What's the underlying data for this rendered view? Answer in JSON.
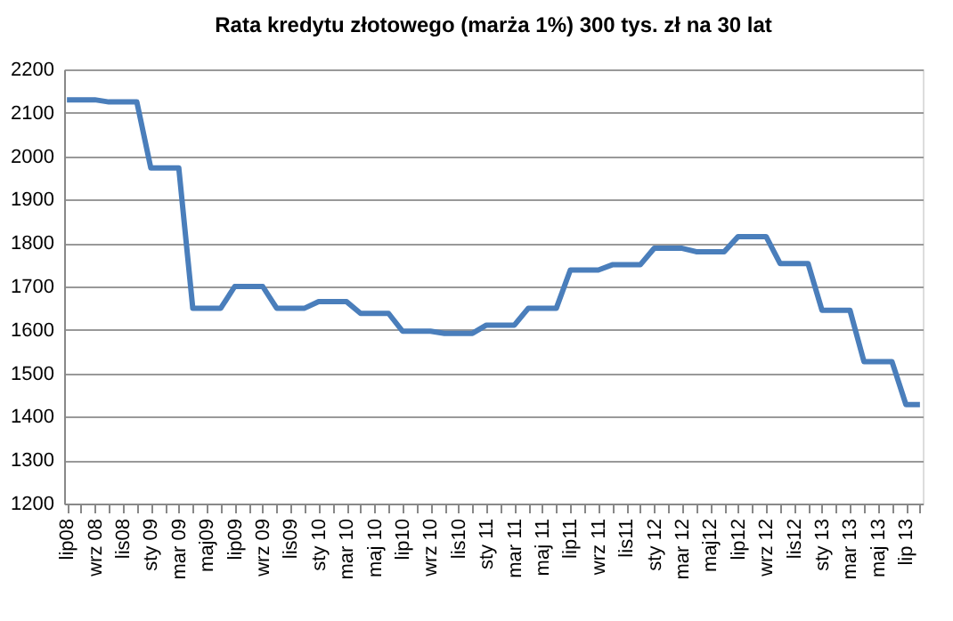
{
  "chart_data": {
    "type": "line",
    "title": "Rata kredytu złotowego (marża 1%) 300 tys. zł na 30 lat",
    "categories": [
      "lip08",
      null,
      "wrz 08",
      null,
      "lis08",
      null,
      "sty 09",
      null,
      "mar 09",
      null,
      "maj09",
      null,
      "lip09",
      null,
      "wrz 09",
      null,
      "lis09",
      null,
      "sty 10",
      null,
      "mar 10",
      null,
      "maj 10",
      null,
      "lip10",
      null,
      "wrz 10",
      null,
      "lis10",
      null,
      "sty 11",
      null,
      "mar 11",
      null,
      "maj 11",
      null,
      "lip11",
      null,
      "wrz 11",
      null,
      "lis11",
      null,
      "sty 12",
      null,
      "mar 12",
      null,
      "maj12",
      null,
      "lip12",
      null,
      "wrz 12",
      null,
      "lis12",
      null,
      "sty 13",
      null,
      "mar 13",
      null,
      "maj 13",
      null,
      "lip 13",
      null
    ],
    "series": [
      {
        "color": "#4a7ebb",
        "values": [
          2130,
          2130,
          2130,
          2125,
          2125,
          2125,
          1973,
          1973,
          1973,
          1650,
          1650,
          1650,
          1700,
          1700,
          1700,
          1650,
          1650,
          1650,
          1665,
          1665,
          1665,
          1638,
          1638,
          1638,
          1597,
          1597,
          1597,
          1592,
          1592,
          1592,
          1611,
          1611,
          1611,
          1650,
          1650,
          1650,
          1738,
          1738,
          1738,
          1750,
          1750,
          1750,
          1788,
          1788,
          1788,
          1780,
          1780,
          1780,
          1815,
          1815,
          1815,
          1753,
          1753,
          1753,
          1645,
          1645,
          1645,
          1527,
          1527,
          1527,
          1428,
          1428
        ]
      }
    ],
    "ylim": [
      1200,
      2200
    ],
    "yticks": [
      1200,
      1300,
      1400,
      1500,
      1600,
      1700,
      1800,
      1900,
      2000,
      2100,
      2200
    ],
    "grid": "y",
    "marker": "none",
    "line_style": "solid"
  }
}
